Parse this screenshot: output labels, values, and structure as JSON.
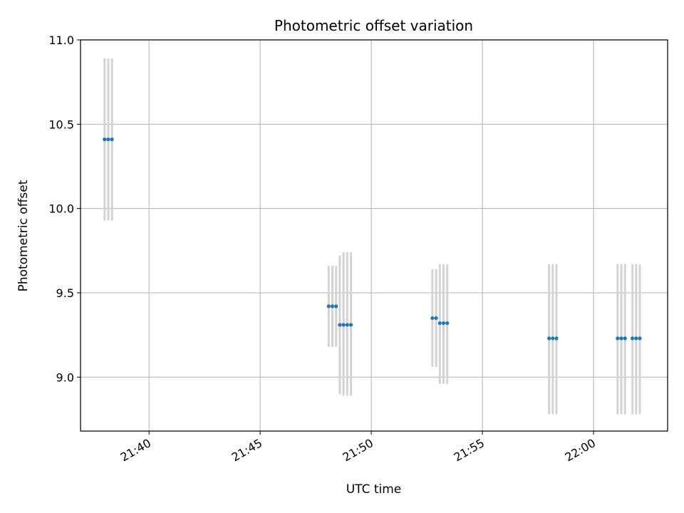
{
  "chart_data": {
    "type": "scatter",
    "title": "Photometric offset variation",
    "xlabel": "UTC time",
    "ylabel": "Photometric offset",
    "x_ticks": [
      "21:40",
      "21:45",
      "21:50",
      "21:55",
      "22:00"
    ],
    "y_ticks": [
      "9.0",
      "9.5",
      "10.0",
      "10.5",
      "11.0"
    ],
    "xlim": [
      "21:36:55",
      "22:03:20"
    ],
    "ylim": [
      8.68,
      11.0
    ],
    "grid": true,
    "marker_color": "#1f77b4",
    "errorbar_color": "#d3d3d3",
    "points": [
      {
        "x": "21:38:00",
        "y": 10.41,
        "err_low": 9.93,
        "err_high": 10.89
      },
      {
        "x": "21:38:10",
        "y": 10.41,
        "err_low": 9.93,
        "err_high": 10.89
      },
      {
        "x": "21:38:20",
        "y": 10.41,
        "err_low": 9.93,
        "err_high": 10.89
      },
      {
        "x": "21:48:05",
        "y": 9.42,
        "err_low": 9.18,
        "err_high": 9.66
      },
      {
        "x": "21:48:15",
        "y": 9.42,
        "err_low": 9.18,
        "err_high": 9.66
      },
      {
        "x": "21:48:25",
        "y": 9.42,
        "err_low": 9.18,
        "err_high": 9.66
      },
      {
        "x": "21:48:35",
        "y": 9.31,
        "err_low": 8.9,
        "err_high": 9.72
      },
      {
        "x": "21:48:45",
        "y": 9.31,
        "err_low": 8.89,
        "err_high": 9.74
      },
      {
        "x": "21:48:55",
        "y": 9.31,
        "err_low": 8.89,
        "err_high": 9.74
      },
      {
        "x": "21:49:05",
        "y": 9.31,
        "err_low": 8.89,
        "err_high": 9.74
      },
      {
        "x": "21:52:45",
        "y": 9.35,
        "err_low": 9.06,
        "err_high": 9.64
      },
      {
        "x": "21:52:55",
        "y": 9.35,
        "err_low": 9.06,
        "err_high": 9.64
      },
      {
        "x": "21:53:05",
        "y": 9.32,
        "err_low": 8.96,
        "err_high": 9.67
      },
      {
        "x": "21:53:15",
        "y": 9.32,
        "err_low": 8.96,
        "err_high": 9.67
      },
      {
        "x": "21:53:25",
        "y": 9.32,
        "err_low": 8.96,
        "err_high": 9.67
      },
      {
        "x": "21:58:00",
        "y": 9.23,
        "err_low": 8.78,
        "err_high": 9.67
      },
      {
        "x": "21:58:10",
        "y": 9.23,
        "err_low": 8.78,
        "err_high": 9.67
      },
      {
        "x": "21:58:20",
        "y": 9.23,
        "err_low": 8.78,
        "err_high": 9.67
      },
      {
        "x": "22:01:05",
        "y": 9.23,
        "err_low": 8.78,
        "err_high": 9.67
      },
      {
        "x": "22:01:15",
        "y": 9.23,
        "err_low": 8.78,
        "err_high": 9.67
      },
      {
        "x": "22:01:25",
        "y": 9.23,
        "err_low": 8.78,
        "err_high": 9.67
      },
      {
        "x": "22:01:45",
        "y": 9.23,
        "err_low": 8.78,
        "err_high": 9.67
      },
      {
        "x": "22:01:55",
        "y": 9.23,
        "err_low": 8.78,
        "err_high": 9.67
      },
      {
        "x": "22:02:05",
        "y": 9.23,
        "err_low": 8.78,
        "err_high": 9.67
      }
    ]
  }
}
